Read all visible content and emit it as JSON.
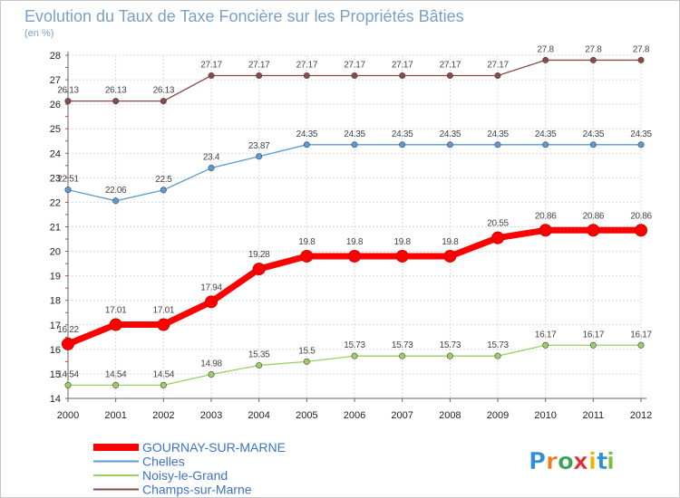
{
  "chart_data": {
    "type": "line",
    "title": "Evolution du Taux de Taxe Foncière sur les Propriétés Bâties",
    "subtitle": "(en %)",
    "x": [
      "2000",
      "2001",
      "2002",
      "2003",
      "2004",
      "2005",
      "2006",
      "2007",
      "2008",
      "2009",
      "2010",
      "2011",
      "2012"
    ],
    "ylim": [
      14,
      28
    ],
    "yticks": [
      14,
      15,
      16,
      17,
      18,
      19,
      20,
      21,
      22,
      23,
      24,
      25,
      26,
      27,
      28
    ],
    "grid": true,
    "legend_position": "bottom-left",
    "series": [
      {
        "name": "GOURNAY-SUR-MARNE",
        "color": "#ff0000",
        "values": [
          16.22,
          17.01,
          17.01,
          17.94,
          19.28,
          19.8,
          19.8,
          19.8,
          19.8,
          20.55,
          20.86,
          20.86,
          20.86
        ],
        "labels": [
          "16.22",
          "17.01",
          "17.01",
          "17.94",
          "19.28",
          "19.8",
          "19.8",
          "19.8",
          "19.8",
          "20.55",
          "20.86",
          "20.86",
          "20.86"
        ]
      },
      {
        "name": "Chelles",
        "color": "#5b9bd5",
        "values": [
          22.51,
          22.06,
          22.5,
          23.4,
          23.87,
          24.35,
          24.35,
          24.35,
          24.35,
          24.35,
          24.35,
          24.35,
          24.35
        ],
        "labels": [
          "22.51",
          "22.06",
          "22.5",
          "23.4",
          "23.87",
          "24.35",
          "24.35",
          "24.35",
          "24.35",
          "24.35",
          "24.35",
          "24.35",
          "24.35"
        ]
      },
      {
        "name": "Noisy-le-Grand",
        "color": "#99d066",
        "values": [
          14.54,
          14.54,
          14.54,
          14.98,
          15.35,
          15.5,
          15.73,
          15.73,
          15.73,
          15.73,
          16.17,
          16.17,
          16.17
        ],
        "labels": [
          "14.54",
          "14.54",
          "14.54",
          "14.98",
          "15.35",
          "15.5",
          "15.73",
          "15.73",
          "15.73",
          "15.73",
          "16.17",
          "16.17",
          "16.17"
        ]
      },
      {
        "name": "Champs-sur-Marne",
        "color": "#8b4a4a",
        "values": [
          26.13,
          26.13,
          26.13,
          27.17,
          27.17,
          27.17,
          27.17,
          27.17,
          27.17,
          27.17,
          27.8,
          27.8,
          27.8
        ],
        "labels": [
          "26.13",
          "26.13",
          "26.13",
          "27.17",
          "27.17",
          "27.17",
          "27.17",
          "27.17",
          "27.17",
          "27.17",
          "27.8",
          "27.8",
          "27.8"
        ]
      }
    ]
  },
  "logo": {
    "letters": [
      "P",
      "r",
      "o",
      "x",
      "i",
      "t",
      "i"
    ],
    "colors": [
      "#2f8fd8",
      "#f07b1e",
      "#3aa35a",
      "#e03030",
      "#f0b000",
      "#2f8fd8",
      "#7bbf3a"
    ]
  }
}
